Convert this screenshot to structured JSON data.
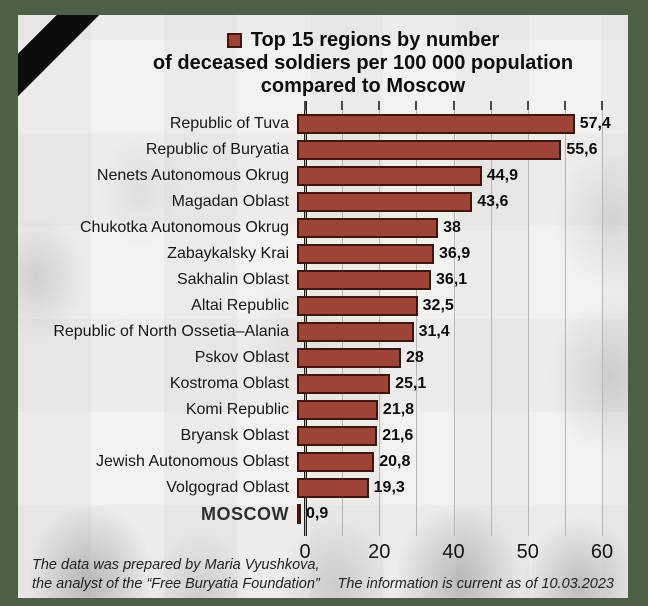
{
  "colors": {
    "frame_green": "#4d5f47",
    "panel_bg": "#f1f0ee",
    "bar_fill": "#9d4337",
    "bar_border": "#3f1510",
    "ribbon_black": "#0b0b0b",
    "gridline": "#b7b5b2",
    "axis_line": "#1c1c1c",
    "text": "#0d0d0d"
  },
  "title": {
    "line1": "Top 15 regions by number",
    "line2": "of deceased soldiers per 100 000 population",
    "line3": "compared to Moscow"
  },
  "chart_data": {
    "type": "bar",
    "orientation": "horizontal",
    "title": "Top 15 regions by number of deceased soldiers per 100 000 population compared to Moscow",
    "categories": [
      "Republic of Tuva",
      "Republic of Buryatia",
      "Nenets Autonomous Okrug",
      "Magadan Oblast",
      "Chukotka Autonomous Okrug",
      "Zabaykalsky Krai",
      "Sakhalin Oblast",
      "Altai Republic",
      "Republic of North Ossetia–Alania",
      "Pskov Oblast",
      "Kostroma Oblast",
      "Komi Republic",
      "Bryansk Oblast",
      "Jewish Autonomous Oblast",
      "Volgograd Oblast",
      "MOSCOW"
    ],
    "values": [
      57.4,
      55.6,
      44.9,
      43.6,
      38,
      36.9,
      36.1,
      32.5,
      31.4,
      28,
      25.1,
      21.8,
      21.6,
      20.8,
      19.3,
      0.9
    ],
    "value_labels": [
      "57,4",
      "55,6",
      "44,9",
      "43,6",
      "38",
      "36,9",
      "36,1",
      "32,5",
      "31,4",
      "28",
      "25,1",
      "21,8",
      "21,6",
      "20,8",
      "19,3",
      "0,9"
    ],
    "xticks": [
      {
        "label": "0",
        "pos_pct": 0
      },
      {
        "label": "20",
        "pos_pct": 25
      },
      {
        "label": "40",
        "pos_pct": 50
      },
      {
        "label": "50",
        "pos_pct": 75
      },
      {
        "label": "60",
        "pos_pct": 100
      }
    ],
    "gridline_positions_pct": [
      0,
      12.5,
      25,
      37.5,
      50,
      62.5,
      75,
      87.5,
      100
    ],
    "xlim": [
      0,
      60
    ],
    "axis_scale_segments": [
      {
        "value_from": 0,
        "value_to": 40,
        "axis_fraction_from": 0,
        "axis_fraction_to": 0.5
      },
      {
        "value_from": 40,
        "value_to": 60,
        "axis_fraction_from": 0.5,
        "axis_fraction_to": 1.0
      }
    ],
    "grid": true,
    "legend_position": "title-inline",
    "emphasized_category": "MOSCOW"
  },
  "footer": {
    "credit_line1": "The data was prepared by Maria Vyushkova,",
    "credit_line2": "the analyst of the “Free Buryatia Foundation”",
    "date_note": "The information is current as of 10.03.2023"
  }
}
